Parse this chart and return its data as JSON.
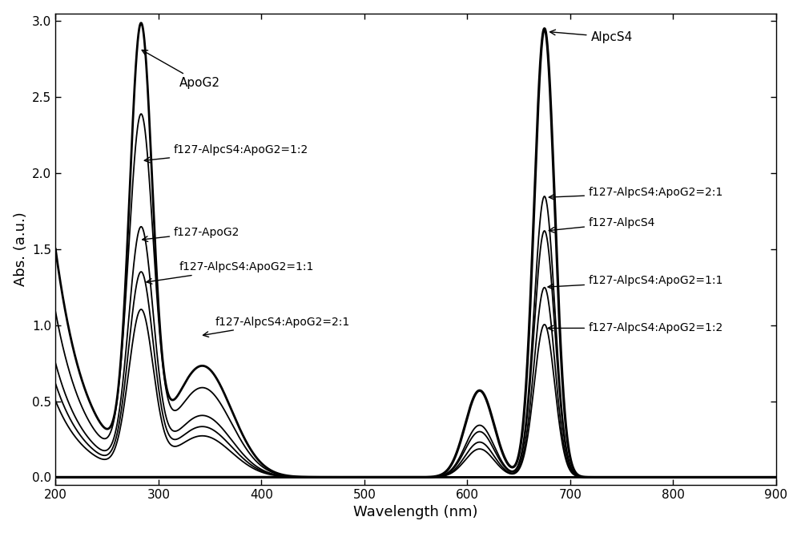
{
  "title": "",
  "xlabel": "Wavelength (nm)",
  "ylabel": "Abs. (a.u.)",
  "xlim": [
    200,
    900
  ],
  "ylim": [
    -0.05,
    3.05
  ],
  "yticks": [
    0.0,
    0.5,
    1.0,
    1.5,
    2.0,
    2.5,
    3.0
  ],
  "xticks": [
    200,
    300,
    400,
    500,
    600,
    700,
    800,
    900
  ],
  "background_color": "#ffffff",
  "fontsize_axis_label": 13,
  "fontsize_tick": 11,
  "fontsize_ann_main": 11,
  "fontsize_ann_sub": 10
}
